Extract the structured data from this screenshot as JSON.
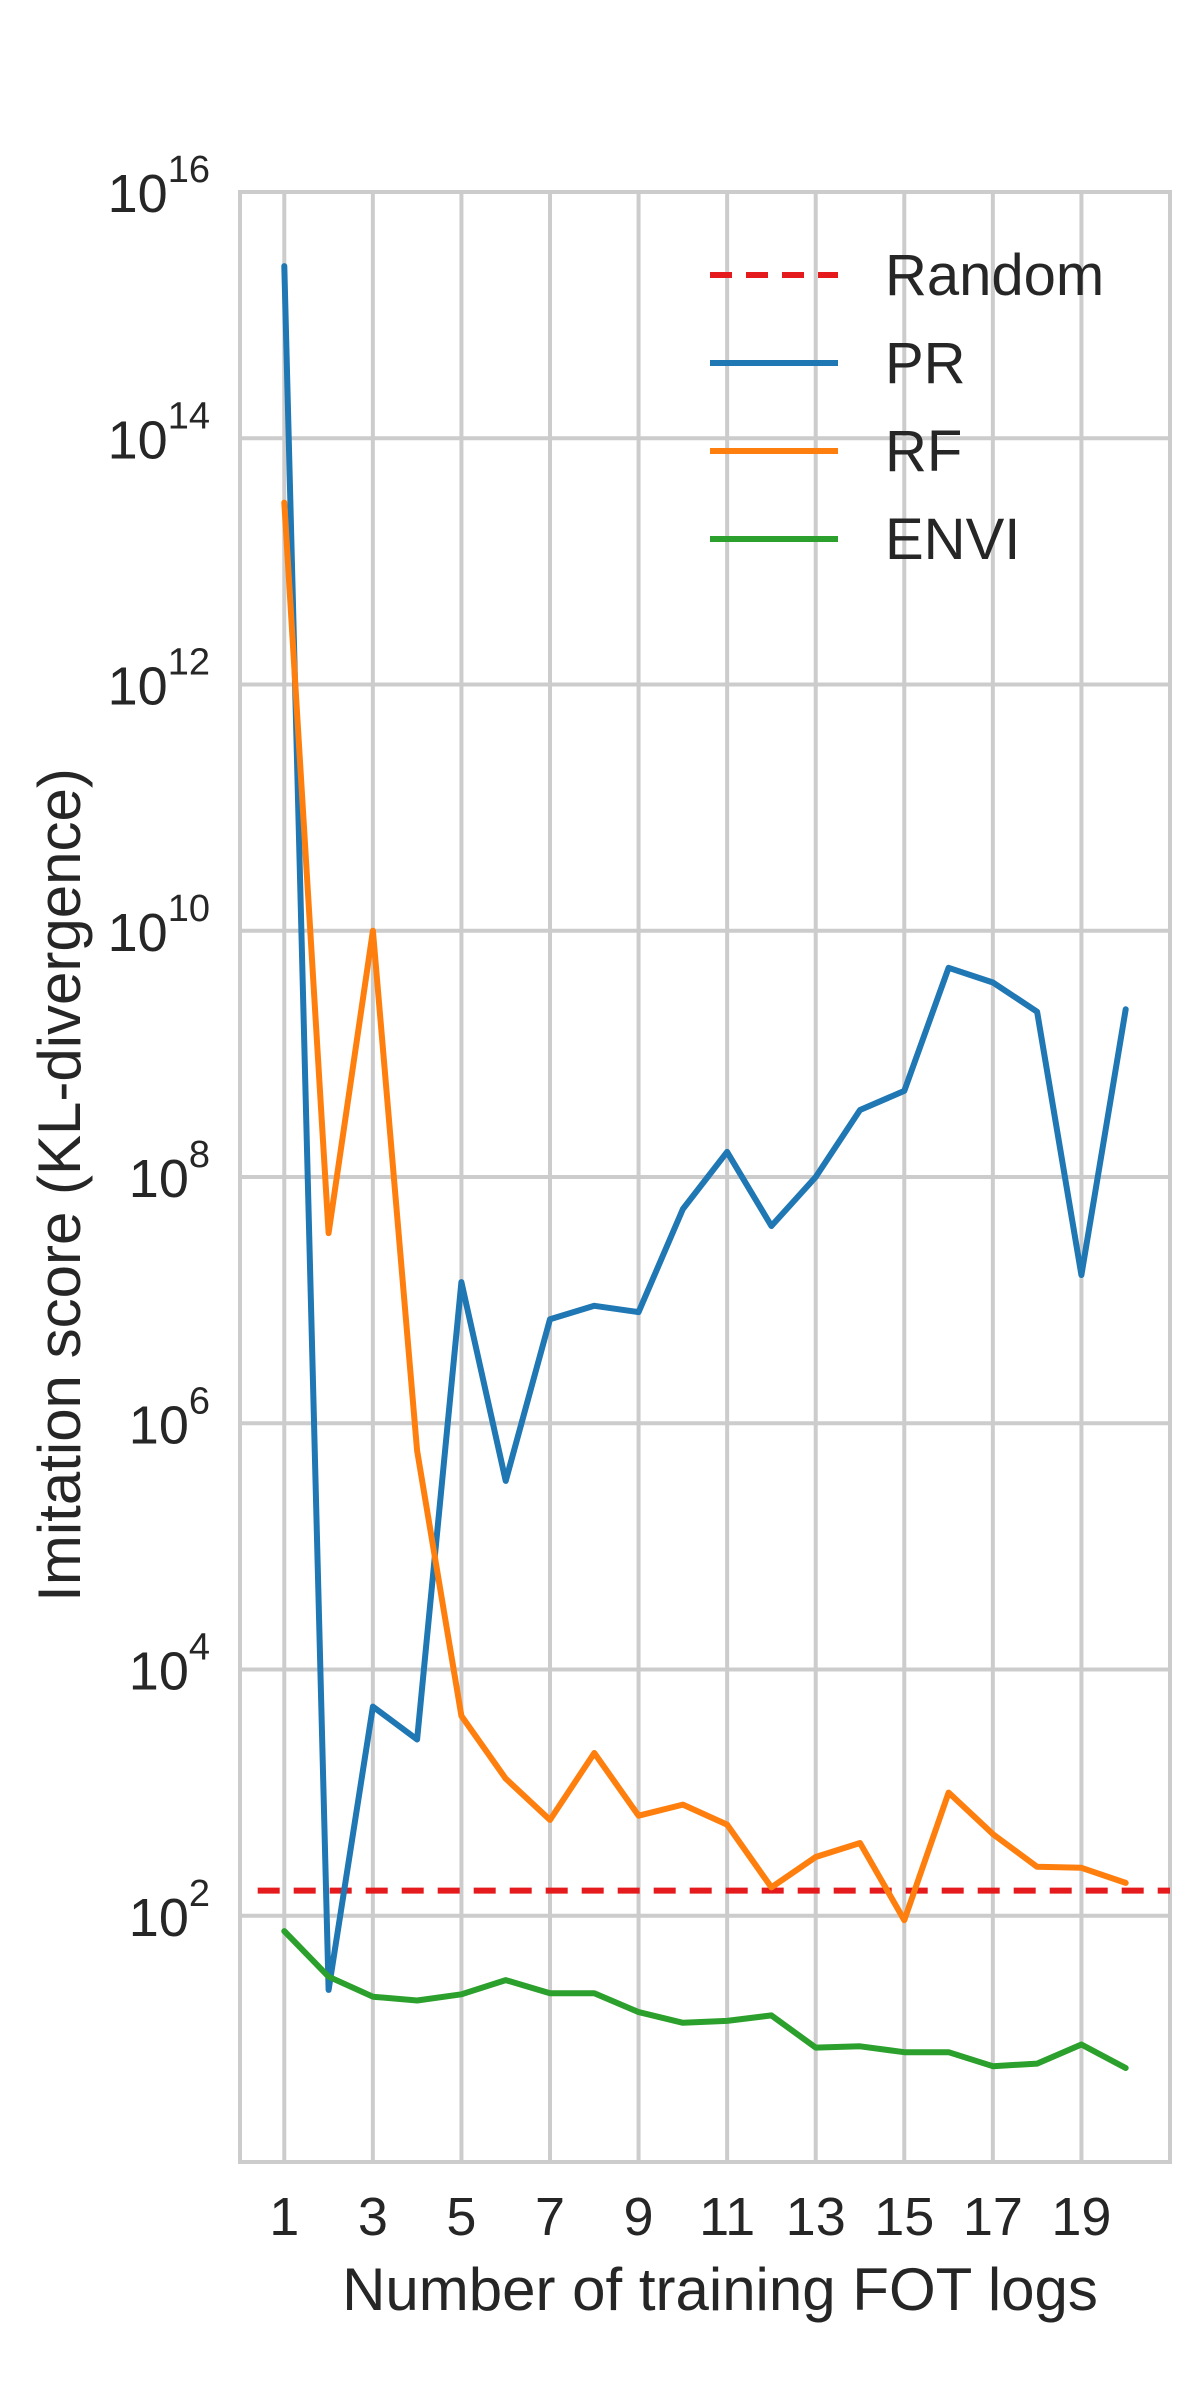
{
  "chart_data": {
    "type": "line",
    "title": "",
    "xlabel": "Number of training FOT logs",
    "ylabel": "Imitation score (KL-divergence)",
    "yscale": "log",
    "xlim": [
      0,
      21
    ],
    "ylim": [
      1,
      1e+16
    ],
    "grid": true,
    "legend_position": "top-right",
    "xticks": [
      "1",
      "3",
      "5",
      "7",
      "9",
      "11",
      "13",
      "15",
      "17",
      "19"
    ],
    "yticks": [
      {
        "base": "10",
        "exp": "2",
        "value": 100
      },
      {
        "base": "10",
        "exp": "4",
        "value": 10000
      },
      {
        "base": "10",
        "exp": "6",
        "value": 1000000
      },
      {
        "base": "10",
        "exp": "8",
        "value": 100000000
      },
      {
        "base": "10",
        "exp": "10",
        "value": 10000000000
      },
      {
        "base": "10",
        "exp": "12",
        "value": 1000000000000
      },
      {
        "base": "10",
        "exp": "14",
        "value": 100000000000000
      },
      {
        "base": "10",
        "exp": "16",
        "value": 10000000000000000
      }
    ],
    "x": [
      1,
      2,
      3,
      4,
      5,
      6,
      7,
      8,
      9,
      10,
      11,
      12,
      13,
      14,
      15,
      16,
      17,
      18,
      19,
      20
    ],
    "series": [
      {
        "name": "Random",
        "style": "dashed",
        "color": "#e41a1c",
        "values": [
          160,
          160,
          160,
          160,
          160,
          160,
          160,
          160,
          160,
          160,
          160,
          160,
          160,
          160,
          160,
          160,
          160,
          160,
          160,
          160
        ]
      },
      {
        "name": "PR",
        "style": "solid",
        "color": "#1f77b4",
        "values": [
          2500000000000000.0,
          25,
          5000,
          2700,
          14000000.0,
          340000,
          7000000.0,
          9000000.0,
          8000000.0,
          55000000.0,
          160000000.0,
          40000000.0,
          100000000.0,
          350000000.0,
          500000000.0,
          5000000000.0,
          3800000000.0,
          2200000000.0,
          16000000.0,
          2300000000.0
        ]
      },
      {
        "name": "RF",
        "style": "solid",
        "color": "#ff7f0e",
        "values": [
          30000000000000.0,
          35000000.0,
          10000000000.0,
          600000,
          4200,
          1300,
          600,
          2100,
          650,
          800,
          550,
          170,
          300,
          390,
          92,
          1000,
          460,
          250,
          245,
          185
        ]
      },
      {
        "name": "ENVI",
        "style": "solid",
        "color": "#2ca02c",
        "values": [
          75,
          32,
          22,
          20.5,
          23,
          30,
          23.5,
          23.5,
          16.5,
          13.5,
          14,
          15.5,
          8.5,
          8.7,
          7.8,
          7.8,
          6,
          6.3,
          9,
          5.8
        ]
      }
    ]
  }
}
